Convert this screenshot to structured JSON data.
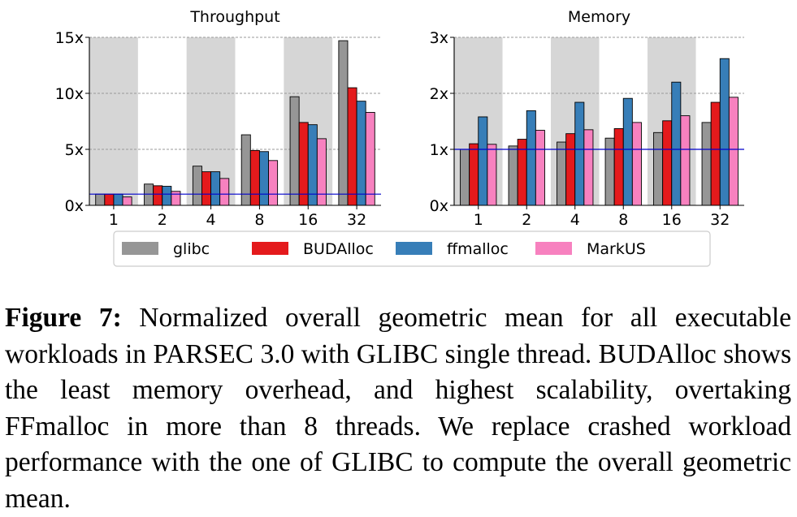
{
  "chart_data": [
    {
      "type": "bar",
      "title": "Throughput",
      "categories": [
        "1",
        "2",
        "4",
        "8",
        "16",
        "32"
      ],
      "ylim": [
        0,
        15
      ],
      "yticks": [
        "0x",
        "5x",
        "10x",
        "15x"
      ],
      "reference_line": 1,
      "grid": "horizontal dashed",
      "series": [
        {
          "name": "glibc",
          "values": [
            1.0,
            1.9,
            3.5,
            6.3,
            9.7,
            14.7
          ]
        },
        {
          "name": "BUDAlloc",
          "values": [
            1.0,
            1.75,
            3.0,
            4.9,
            7.4,
            10.5
          ]
        },
        {
          "name": "ffmalloc",
          "values": [
            1.0,
            1.7,
            3.0,
            4.8,
            7.2,
            9.3
          ]
        },
        {
          "name": "MarkUS",
          "values": [
            0.75,
            1.25,
            2.4,
            4.0,
            5.95,
            8.3
          ]
        }
      ]
    },
    {
      "type": "bar",
      "title": "Memory",
      "categories": [
        "1",
        "2",
        "4",
        "8",
        "16",
        "32"
      ],
      "ylim": [
        0,
        3
      ],
      "yticks": [
        "0x",
        "1x",
        "2x",
        "3x"
      ],
      "reference_line": 1,
      "grid": "horizontal dashed",
      "series": [
        {
          "name": "glibc",
          "values": [
            1.0,
            1.06,
            1.13,
            1.2,
            1.3,
            1.48
          ]
        },
        {
          "name": "BUDAlloc",
          "values": [
            1.1,
            1.18,
            1.28,
            1.37,
            1.51,
            1.84
          ]
        },
        {
          "name": "ffmalloc",
          "values": [
            1.58,
            1.69,
            1.84,
            1.91,
            2.2,
            2.62
          ]
        },
        {
          "name": "MarkUS",
          "values": [
            1.09,
            1.34,
            1.35,
            1.48,
            1.6,
            1.93
          ]
        }
      ]
    }
  ],
  "legend": {
    "placement": "bottom-center",
    "items": [
      {
        "name": "glibc",
        "color": "#969696"
      },
      {
        "name": "BUDAlloc",
        "color": "#e41a1c"
      },
      {
        "name": "ffmalloc",
        "color": "#377eb8"
      },
      {
        "name": "MarkUS",
        "color": "#f781bf"
      }
    ]
  },
  "colors": {
    "bands": "#d6d6d6",
    "reference_line": "#0000cc",
    "grid": "#9a9a9a"
  },
  "caption": {
    "label": "Figure 7:",
    "text": " Normalized overall geometric mean for all executable workloads in PARSEC 3.0 with GLIBC single thread. BUDAlloc shows the least memory overhead, and highest scalability, overtaking FFmalloc in more than 8 threads. We replace crashed workload performance with the one of GLIBC to compute the overall geometric mean."
  }
}
